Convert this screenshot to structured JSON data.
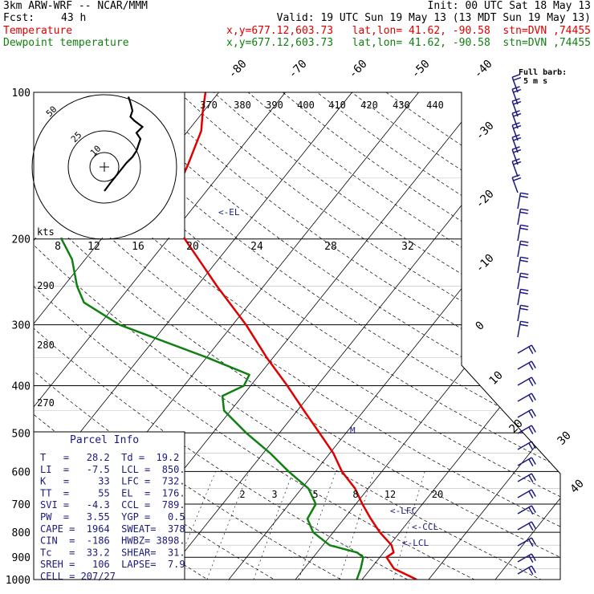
{
  "header": {
    "model": "3km ARW-WRF -- NCAR/MMM",
    "init": "Init: 00 UTC Sat 18 May 13",
    "fcst_label": "Fcst:",
    "fcst_value": "43 h",
    "valid": "Valid: 19 UTC Sun 19 May 13 (13 MDT Sun 19 May 13)",
    "temp_label": "Temperature",
    "temp_loc": "x,y=677.12,603.73   lat,lon= 41.62, -90.58  stn=DVN ,74455",
    "dew_label": "Dewpoint temperature",
    "dew_loc": "x,y=677.12,603.73   lat,lon= 41.62, -90.58  stn=DVN ,74455"
  },
  "colors": {
    "temperature": "#e00000",
    "dewpoint": "#108010",
    "panel_text": "#1a1a80",
    "hodograph": "#000000"
  },
  "chart_data": {
    "type": "line",
    "pressure_levels": [
      100,
      200,
      300,
      400,
      500,
      600,
      700,
      800,
      900,
      1000
    ],
    "temperature_ticks": [
      "-80",
      "-70",
      "-60",
      "-50",
      "-40",
      "-30",
      "-20",
      "-10",
      "0",
      "10",
      "20",
      "30",
      "40"
    ],
    "theta_labels": [
      "370",
      "380",
      "390",
      "400",
      "410",
      "420",
      "430",
      "440"
    ],
    "theta_left_labels": [
      "290",
      "280",
      "270"
    ],
    "mixing_ratio_labels": [
      "2",
      "3",
      "5",
      "8",
      "12",
      "20"
    ],
    "series": [
      {
        "name": "Temperature",
        "points": [
          [
            1000,
            28.2
          ],
          [
            950,
            23.5
          ],
          [
            900,
            21.0
          ],
          [
            880,
            21.5
          ],
          [
            850,
            20.3
          ],
          [
            800,
            17.0
          ],
          [
            750,
            14.0
          ],
          [
            700,
            11.0
          ],
          [
            650,
            8.0
          ],
          [
            600,
            4.0
          ],
          [
            550,
            0.5
          ],
          [
            500,
            -4.0
          ],
          [
            450,
            -9.0
          ],
          [
            400,
            -14.5
          ],
          [
            350,
            -21.0
          ],
          [
            300,
            -28.0
          ],
          [
            250,
            -37.0
          ],
          [
            200,
            -47.5
          ],
          [
            180,
            -51.5
          ],
          [
            160,
            -54.5
          ],
          [
            140,
            -56.0
          ],
          [
            120,
            -58.0
          ],
          [
            110,
            -60.0
          ],
          [
            100,
            -62.0
          ]
        ]
      },
      {
        "name": "Dewpoint temperature",
        "points": [
          [
            1000,
            19.2
          ],
          [
            950,
            18.5
          ],
          [
            900,
            17.5
          ],
          [
            880,
            16.0
          ],
          [
            850,
            11.0
          ],
          [
            800,
            7.0
          ],
          [
            750,
            4.5
          ],
          [
            700,
            4.0
          ],
          [
            650,
            1.0
          ],
          [
            600,
            -4.0
          ],
          [
            550,
            -9.0
          ],
          [
            500,
            -15.0
          ],
          [
            450,
            -21.0
          ],
          [
            420,
            -23.0
          ],
          [
            400,
            -21.0
          ],
          [
            380,
            -21.5
          ],
          [
            350,
            -30.0
          ],
          [
            300,
            -47.0
          ],
          [
            270,
            -55.0
          ],
          [
            250,
            -58.0
          ],
          [
            220,
            -62.0
          ],
          [
            200,
            -66.0
          ],
          [
            170,
            -70.0
          ],
          [
            150,
            -73.0
          ],
          [
            130,
            -75.0
          ],
          [
            110,
            -78.0
          ],
          [
            100,
            -78.0
          ]
        ]
      }
    ],
    "level_markers": [
      "<-EL",
      "<-LFC",
      "<-CCL",
      "<-LCL"
    ],
    "hodograph": {
      "kts_label": "kts",
      "speed_rings": [
        "10",
        "25",
        "50"
      ],
      "speed_axis_ticks": [
        "8",
        "12",
        "16",
        "20",
        "24",
        "28",
        "32"
      ],
      "trace_uv": [
        [
          0,
          -8
        ],
        [
          3,
          -4
        ],
        [
          7,
          1
        ],
        [
          11,
          6
        ],
        [
          14,
          9
        ],
        [
          16,
          12
        ],
        [
          17,
          15
        ],
        [
          18,
          18
        ],
        [
          16,
          21
        ],
        [
          19,
          24
        ],
        [
          15,
          27
        ],
        [
          13,
          29
        ],
        [
          14,
          32
        ],
        [
          13,
          36
        ],
        [
          12,
          39
        ]
      ]
    },
    "wind_barb_legend": "Full barb: 5 m s-1"
  },
  "parcel_info": {
    "title": "Parcel Info",
    "rows": [
      "T   =   28.2  Td =  19.2",
      "LI  =   -7.5  LCL =  850.",
      "K   =     33  LFC =  732.",
      "TT  =     55  EL  =  176.",
      "SVI =   -4.3  CCL =  789.",
      "PW  =   3.55  YGP =   0.5",
      "CAPE =  1964  SWEAT=  378",
      "CIN  =  -186  HWBZ= 3898.",
      "Tc   =  33.2  SHEAR=  31.",
      "SREH =   106  LAPSE=  7.9",
      "CELL = 207/27"
    ]
  }
}
